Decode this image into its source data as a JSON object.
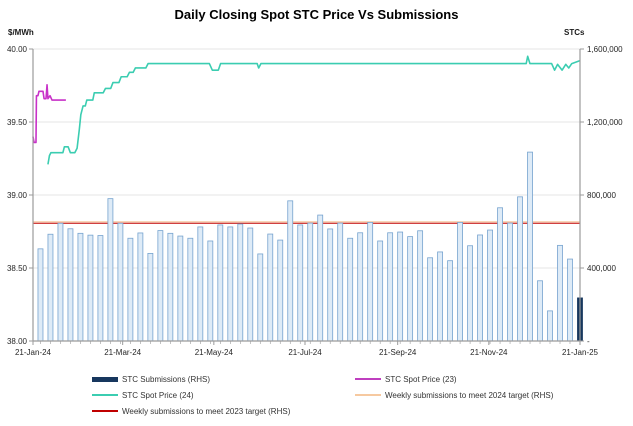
{
  "title": "Daily Closing Spot STC Price Vs Submissions",
  "left_axis_unit": "$/MWh",
  "right_axis_unit": "STCs",
  "legend": {
    "items": [
      {
        "label": "STC  Submissions (RHS)",
        "swatch": "bar",
        "color": "#17375E",
        "col": 0
      },
      {
        "label": "STC Spot Price (24)",
        "swatch": "line",
        "color": "#3BCDB1",
        "col": 0
      },
      {
        "label": "Weekly submissions to meet 2023 target (RHS)",
        "swatch": "line",
        "color": "#C00000",
        "col": 0
      },
      {
        "label": "STC Spot Price (23)",
        "swatch": "line",
        "color": "#BF3FBF",
        "col": 1
      },
      {
        "label": "Weekly submissions to meet 2024 target (RHS)",
        "swatch": "line",
        "color": "#F6C9A0",
        "col": 1
      }
    ]
  },
  "colors": {
    "bar_fill": "#DEEBF7",
    "bar_stroke": "#76A3CF",
    "bar_last": "#17375E",
    "spot24_line": "#3BCDB1",
    "spot23_line": "#C831C8",
    "target_2023_line": "#C00000",
    "target_2024_line": "#F6C9A0",
    "gridline": "#E4E4E4",
    "axis_line": "#9B9B9B",
    "tick_text": "#262626"
  },
  "chart_data": {
    "type": "bar+line",
    "title": "Daily Closing Spot STC Price Vs Submissions",
    "days_total": 366,
    "x_tick_labels": [
      "21-Jan-24",
      "21-Mar-24",
      "21-May-24",
      "21-Jul-24",
      "21-Sep-24",
      "21-Nov-24",
      "21-Jan-25"
    ],
    "x_tick_days": [
      0,
      60,
      121,
      182,
      244,
      305,
      366
    ],
    "left_axis": {
      "label": "$/MWh",
      "min": 38,
      "max": 40,
      "tick_values": [
        40,
        39.5,
        39,
        38.5,
        38
      ],
      "tick_labels": [
        "40.00",
        "39.50",
        "39.00",
        "38.50",
        "38.00"
      ]
    },
    "right_axis": {
      "label": "STCs",
      "min": 0,
      "max": 1600000,
      "tick_values": [
        1600000,
        1200000,
        800000,
        400000,
        0
      ],
      "tick_labels": [
        "1,600,000",
        "1,200,000",
        "800,000",
        "400,000",
        "-"
      ]
    },
    "series": [
      {
        "name": "STC Submissions (RHS)",
        "type": "bar",
        "axis": "right",
        "start_day": 5,
        "interval_days": 6.685,
        "values": [
          505000,
          585000,
          645000,
          615000,
          590000,
          580000,
          578000,
          780000,
          645000,
          563000,
          592000,
          480000,
          605000,
          590000,
          575000,
          563000,
          625000,
          548000,
          636000,
          625000,
          641000,
          619000,
          477000,
          586000,
          553000,
          768000,
          636000,
          646000,
          690000,
          614000,
          646000,
          563000,
          593000,
          650000,
          548000,
          593000,
          597000,
          572000,
          604000,
          456000,
          488000,
          440000,
          650000,
          522000,
          581000,
          608000,
          730000,
          646000,
          790000,
          1035000,
          330000,
          165000,
          524000,
          449000,
          236000
        ]
      },
      {
        "name": "STC Spot Price (24)",
        "type": "line",
        "axis": "left",
        "points": [
          [
            10,
            39.21
          ],
          [
            11,
            39.27
          ],
          [
            12,
            39.29
          ],
          [
            20,
            39.29
          ],
          [
            21,
            39.33
          ],
          [
            23.5,
            39.33
          ],
          [
            25,
            39.29
          ],
          [
            28,
            39.29
          ],
          [
            29.5,
            39.32
          ],
          [
            31,
            39.45
          ],
          [
            32,
            39.55
          ],
          [
            33.5,
            39.61
          ],
          [
            35,
            39.61
          ],
          [
            36,
            39.65
          ],
          [
            40,
            39.65
          ],
          [
            41,
            39.7
          ],
          [
            47,
            39.7
          ],
          [
            48.5,
            39.73
          ],
          [
            52,
            39.73
          ],
          [
            53.5,
            39.77
          ],
          [
            57.5,
            39.77
          ],
          [
            59,
            39.81
          ],
          [
            63,
            39.81
          ],
          [
            64.5,
            39.84
          ],
          [
            67,
            39.84
          ],
          [
            68.5,
            39.87
          ],
          [
            75.5,
            39.87
          ],
          [
            77,
            39.9
          ],
          [
            118,
            39.9
          ],
          [
            120,
            39.855
          ],
          [
            124,
            39.855
          ],
          [
            125.5,
            39.9
          ],
          [
            150,
            39.9
          ],
          [
            151,
            39.87
          ],
          [
            152.5,
            39.9
          ],
          [
            330,
            39.9
          ],
          [
            331,
            39.95
          ],
          [
            332.5,
            39.9
          ],
          [
            347,
            39.9
          ],
          [
            349,
            39.855
          ],
          [
            351,
            39.895
          ],
          [
            354,
            39.855
          ],
          [
            356.5,
            39.895
          ],
          [
            358.5,
            39.87
          ],
          [
            360.5,
            39.9
          ],
          [
            366,
            39.92
          ]
        ]
      },
      {
        "name": "STC Spot Price (23)",
        "type": "line",
        "axis": "left",
        "points": [
          [
            0,
            39.4
          ],
          [
            0.7,
            39.36
          ],
          [
            2,
            39.36
          ],
          [
            2.3,
            39.68
          ],
          [
            3.3,
            39.68
          ],
          [
            4,
            39.71
          ],
          [
            6.7,
            39.71
          ],
          [
            7.4,
            39.66
          ],
          [
            8.7,
            39.66
          ],
          [
            9.4,
            39.755
          ],
          [
            10,
            39.66
          ],
          [
            11.4,
            39.68
          ],
          [
            12.7,
            39.65
          ],
          [
            22,
            39.65
          ]
        ]
      },
      {
        "name": "Weekly submissions to meet 2023 target (RHS)",
        "type": "hline",
        "axis": "right",
        "value": 645000
      },
      {
        "name": "Weekly submissions to meet 2024 target (RHS)",
        "type": "hline",
        "axis": "right",
        "value": 653000
      }
    ]
  }
}
